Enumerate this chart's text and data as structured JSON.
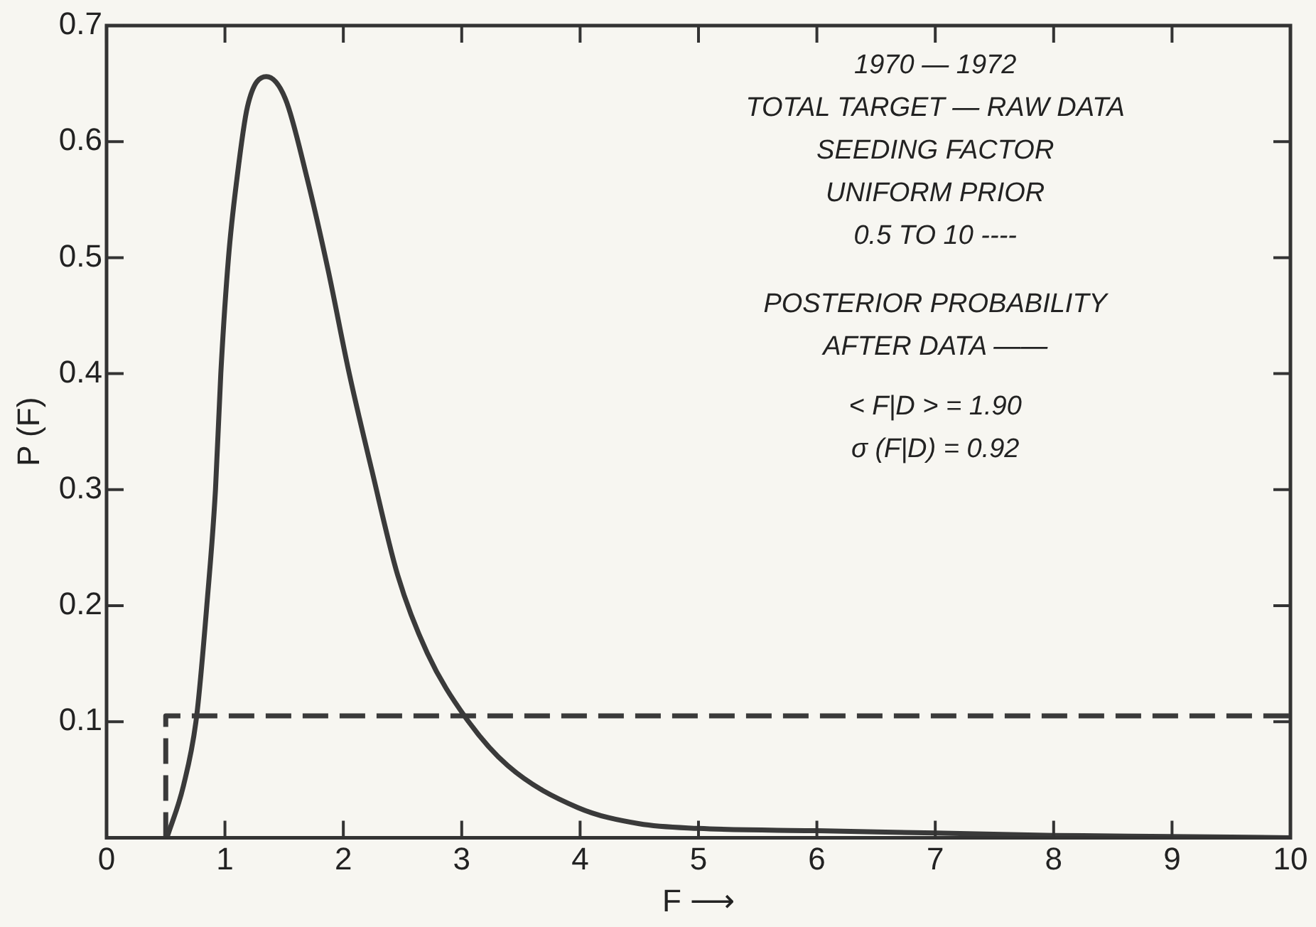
{
  "chart_data": {
    "type": "line",
    "xlabel": "F ⟶",
    "ylabel": "P (F)",
    "x": [
      0.51,
      0.65,
      0.76,
      0.85,
      0.92,
      0.965,
      1.03,
      1.1,
      1.19,
      1.35,
      1.51,
      1.69,
      1.87,
      2.05,
      2.24,
      2.46,
      2.71,
      3.03,
      3.39,
      3.98,
      4.5,
      5,
      6,
      7,
      8,
      9,
      10
    ],
    "series": [
      {
        "color": "#3a3a3a",
        "line_style": "solid",
        "values": [
          0,
          0.045,
          0.104,
          0.204,
          0.3,
          0.4,
          0.5,
          0.567,
          0.63,
          0.656,
          0.637,
          0.57,
          0.49,
          0.4,
          0.317,
          0.226,
          0.159,
          0.104,
          0.062,
          0.026,
          0.012,
          0.008,
          0.006,
          0.004,
          0.002,
          0.001,
          0
        ]
      },
      {
        "type": "step",
        "color": "#3a3a3a",
        "line_style": "dashed",
        "x": [
          0.5,
          10
        ],
        "values": [
          0,
          0.105
        ]
      }
    ],
    "xlim": [
      0,
      10
    ],
    "xticks": [
      0,
      1,
      2,
      3,
      4,
      5,
      6,
      7,
      8,
      9,
      10
    ],
    "ylim": [
      0,
      0.7
    ],
    "yticks": [
      0.1,
      0.2,
      0.3,
      0.4,
      0.5,
      0.6,
      0.7
    ],
    "annotations": [
      "1970 — 1972",
      "TOTAL TARGET — RAW DATA",
      "SEEDING FACTOR",
      "UNIFORM PRIOR",
      "0.5 TO 10 ----",
      "POSTERIOR PROBABILITY",
      "AFTER DATA ——",
      "< F|D > = 1.90",
      "σ (F|D) = 0.92"
    ],
    "grid": false,
    "legend": false,
    "marker": "none"
  }
}
